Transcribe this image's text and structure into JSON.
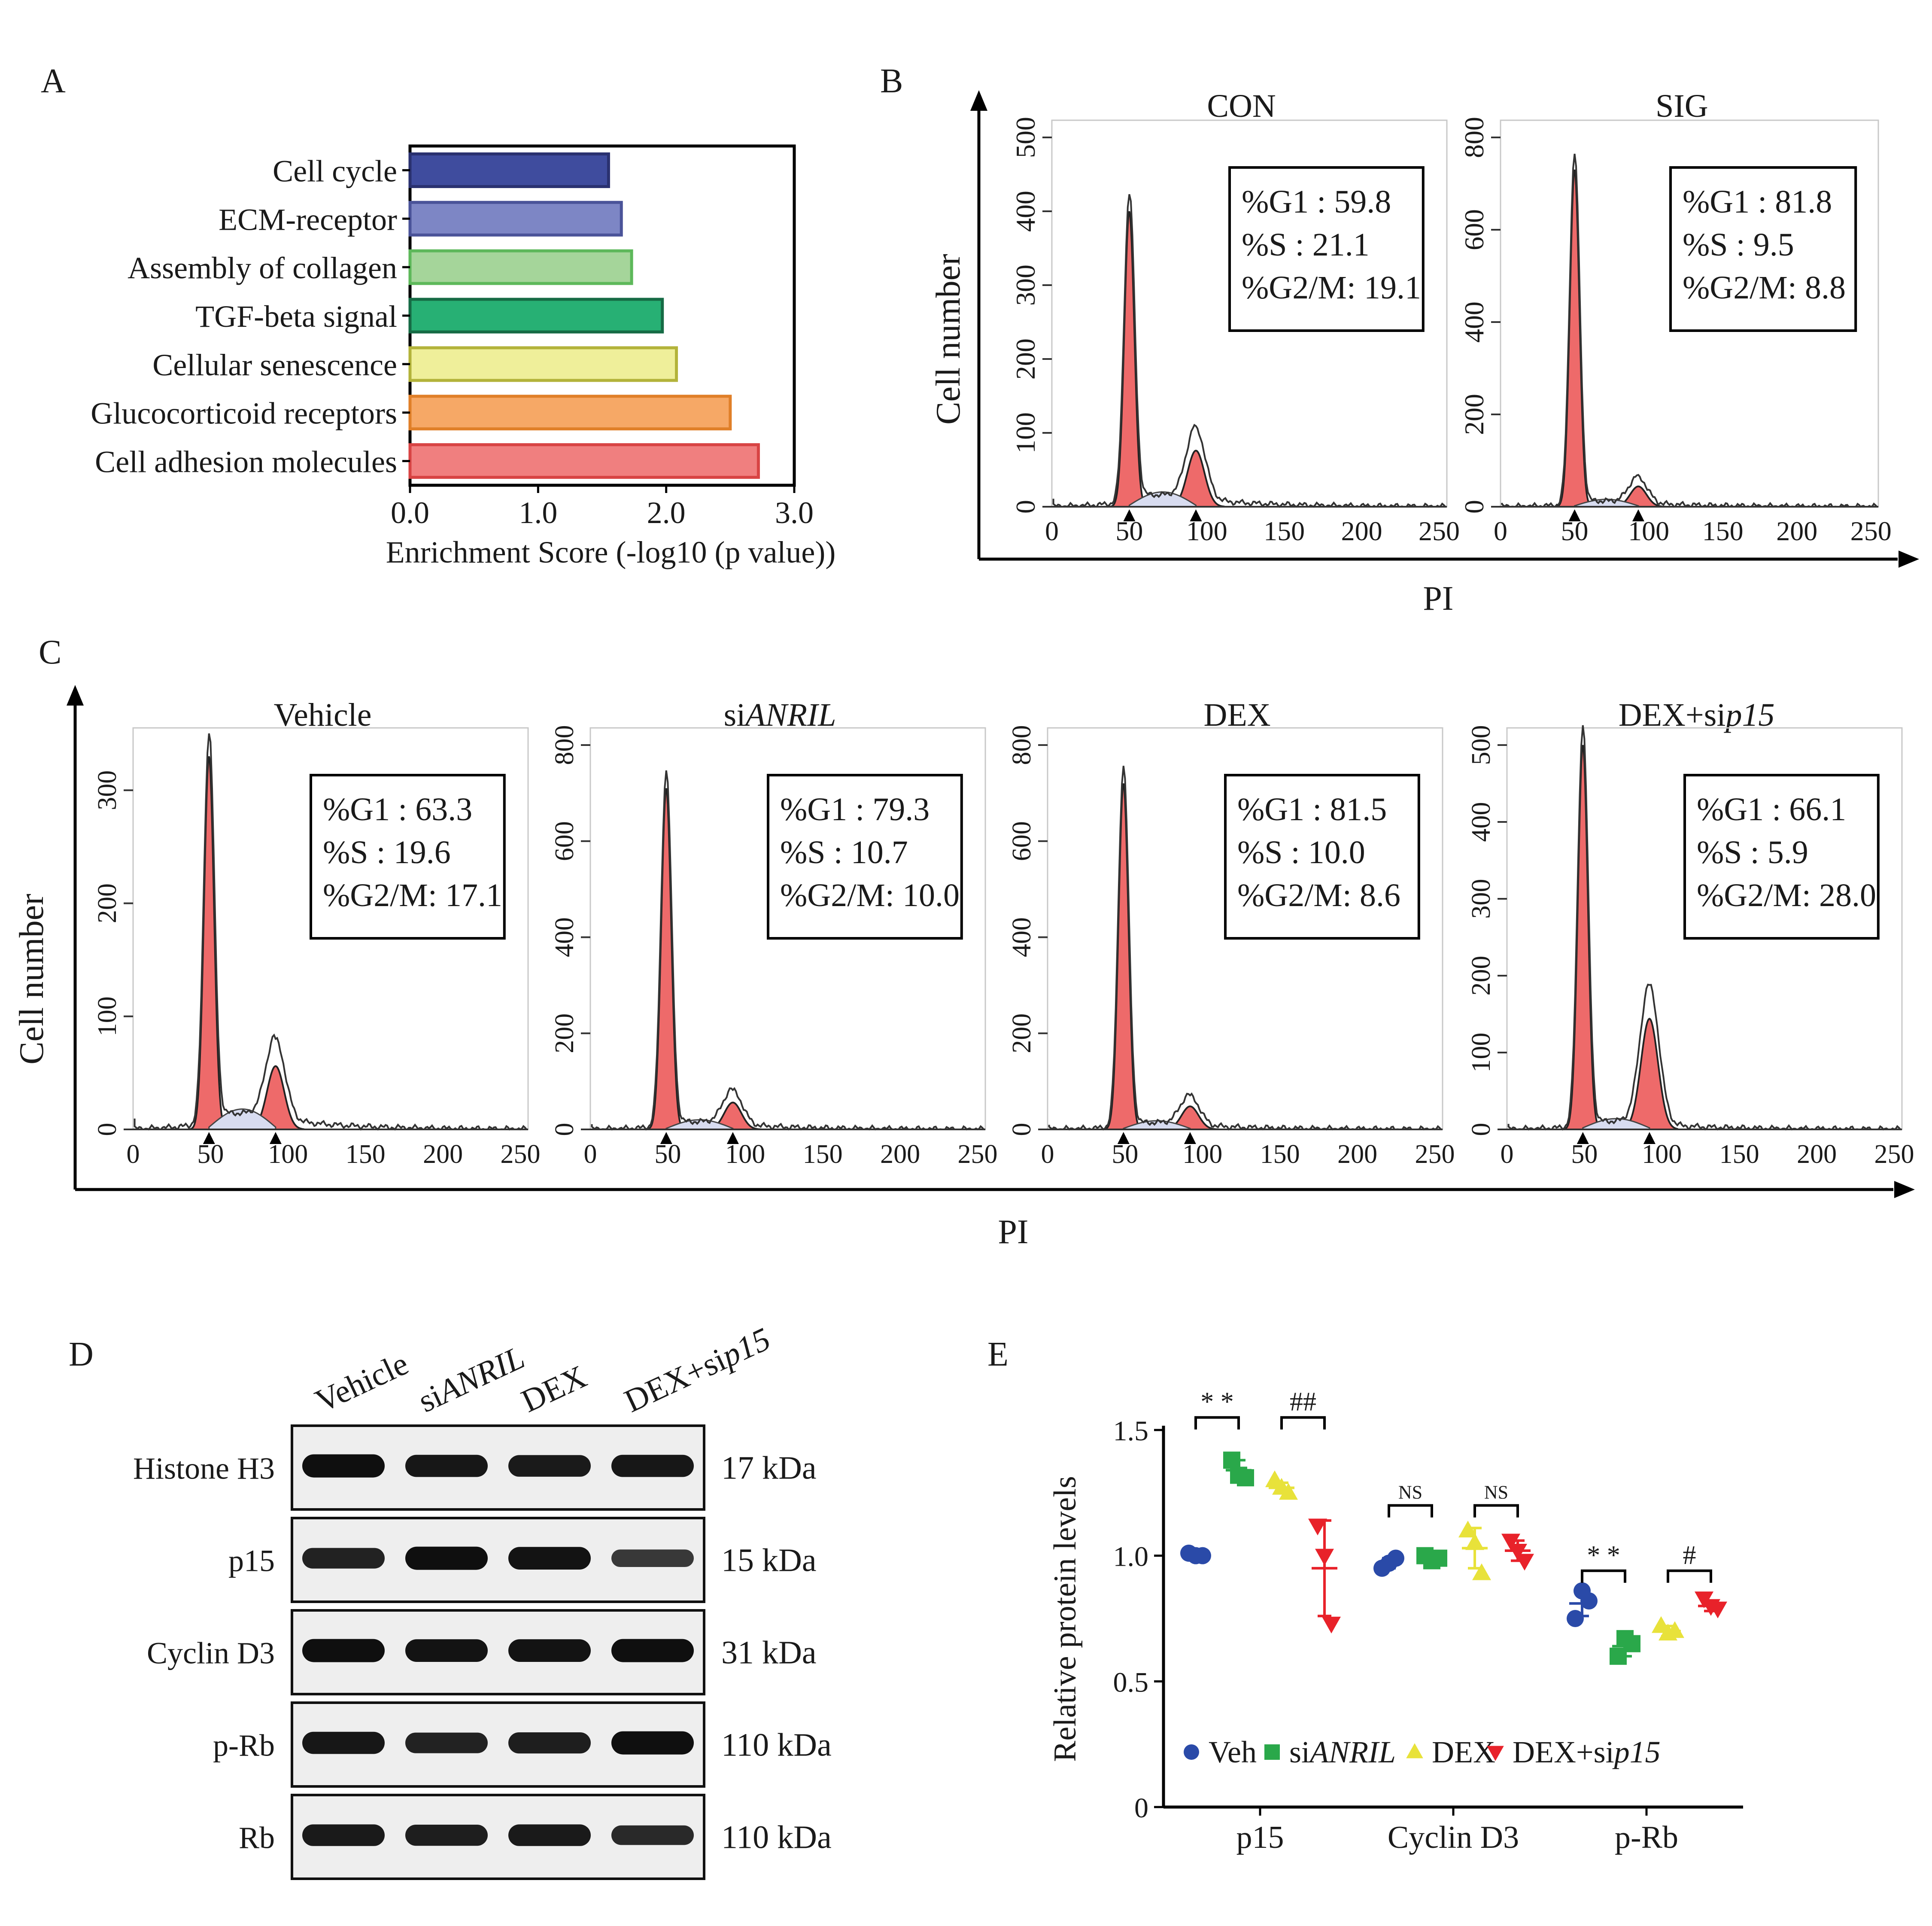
{
  "panels": {
    "A": {
      "letter": "A",
      "chart_data": {
        "type": "bar",
        "orientation": "horizontal",
        "categories": [
          "Cell cycle",
          "ECM-receptor",
          "Assembly of collagen",
          "TGF-beta signal",
          "Cellular senescence",
          "Glucocorticoid receptors",
          "Cell adhesion molecules"
        ],
        "values": [
          1.55,
          1.65,
          1.73,
          1.97,
          2.08,
          2.5,
          2.72
        ],
        "colors": [
          "#3f4c9e",
          "#7d86c5",
          "#a5d59a",
          "#27b074",
          "#efef9a",
          "#f6a866",
          "#f07f7f"
        ],
        "border_colors": [
          "#2a3170",
          "#4a5399",
          "#5db85a",
          "#166b45",
          "#b3b33a",
          "#e07f28",
          "#d84444"
        ],
        "highlight_color": "#e8232a",
        "highlight_index": 4,
        "xlabel": "Enrichment Score (-log10 (p value))",
        "xlim": [
          0,
          3
        ],
        "xticks": [
          "0.0",
          "1.0",
          "2.0",
          "3.0"
        ]
      }
    },
    "B": {
      "letter": "B",
      "ylabel": "Cell number",
      "xlabel": "PI",
      "histograms": [
        {
          "title": "CON",
          "ymax": 500,
          "yticks": [
            "0",
            "100",
            "200",
            "300",
            "400",
            "500"
          ],
          "xticks": [
            "0",
            "50",
            "100",
            "150",
            "200",
            "250"
          ],
          "g1_peak": 400,
          "g2_peak": 95,
          "g1_pos": 50,
          "g2_pos": 93,
          "s_level": 18,
          "stats": {
            "g1": "%G1     : 59.8",
            "s": "%S        : 21.1",
            "g2m": "%G2/M: 19.1"
          }
        },
        {
          "title": "SIG",
          "ymax": 800,
          "yticks": [
            "0",
            "200",
            "400",
            "600",
            "800"
          ],
          "xticks": [
            "0",
            "50",
            "100",
            "150",
            "200",
            "250"
          ],
          "g1_peak": 730,
          "g2_peak": 55,
          "g1_pos": 50,
          "g2_pos": 93,
          "s_level": 14,
          "stats": {
            "g1": "%G1     : 81.8",
            "s": "%S        : 9.5",
            "g2m": "%G2/M: 8.8"
          }
        }
      ]
    },
    "C": {
      "letter": "C",
      "ylabel": "Cell number",
      "xlabel": "PI",
      "histograms": [
        {
          "title_prefix": "Vehicle",
          "title_italic": "",
          "ymax": 340,
          "yticks": [
            "0",
            "100",
            "200",
            "300"
          ],
          "ytick_values": [
            0,
            100,
            200,
            300
          ],
          "xticks": [
            "0",
            "50",
            "100",
            "150",
            "200",
            "250"
          ],
          "g1_peak": 330,
          "g2_peak": 70,
          "g1_pos": 49,
          "g2_pos": 92,
          "s_level": 16,
          "stats": {
            "g1": "%G1      : 63.3",
            "s": "%S         : 19.6",
            "g2m": "%G2/M: 17.1"
          }
        },
        {
          "title_prefix": "si",
          "title_italic": "ANRIL",
          "ymax": 800,
          "yticks": [
            "0",
            "200",
            "400",
            "600",
            "800"
          ],
          "ytick_values": [
            0,
            200,
            400,
            600,
            800
          ],
          "xticks": [
            "0",
            "50",
            "100",
            "150",
            "200",
            "250"
          ],
          "g1_peak": 710,
          "g2_peak": 70,
          "g1_pos": 49,
          "g2_pos": 92,
          "s_level": 18,
          "stats": {
            "g1": "%G1      : 79.3",
            "s": "%S        : 10.7",
            "g2m": "%G2/M: 10.0"
          }
        },
        {
          "title_prefix": "DEX",
          "title_italic": "",
          "ymax": 800,
          "yticks": [
            "0",
            "200",
            "400",
            "600",
            "800"
          ],
          "ytick_values": [
            0,
            200,
            400,
            600,
            800
          ],
          "xticks": [
            "0",
            "50",
            "100",
            "150",
            "200",
            "250"
          ],
          "g1_peak": 720,
          "g2_peak": 60,
          "g1_pos": 49,
          "g2_pos": 92,
          "s_level": 16,
          "stats": {
            "g1": "%G1      : 81.5",
            "s": "%S        : 10.0",
            "g2m": "%G2/M: 8.6"
          }
        },
        {
          "title_prefix": "DEX+si",
          "title_italic": "p15",
          "ymax": 500,
          "yticks": [
            "0",
            "100",
            "200",
            "300",
            "400",
            "500"
          ],
          "ytick_values": [
            0,
            100,
            200,
            300,
            400,
            500
          ],
          "xticks": [
            "0",
            "50",
            "100",
            "150",
            "200",
            "250"
          ],
          "g1_peak": 500,
          "g2_peak": 180,
          "g1_pos": 49,
          "g2_pos": 92,
          "s_level": 12,
          "stats": {
            "g1": "%G1      : 66.1",
            "s": "%S         : 5.9",
            "g2m": "%G2/M: 28.0"
          }
        }
      ]
    },
    "D": {
      "letter": "D",
      "lanes": [
        {
          "prefix": "Vehicle",
          "italic": ""
        },
        {
          "prefix": "si",
          "italic": "ANRIL"
        },
        {
          "prefix": "DEX",
          "italic": ""
        },
        {
          "prefix": "DEX+si",
          "italic": "p15"
        }
      ],
      "blots": [
        {
          "label": "Histone H3",
          "kda": "17 kDa",
          "intensity": [
            1.0,
            0.9,
            0.85,
            0.9
          ]
        },
        {
          "label": "p15",
          "kda": "15 kDa",
          "intensity": [
            0.75,
            1.0,
            0.95,
            0.45
          ]
        },
        {
          "label": "Cyclin D3",
          "kda": "31 kDa",
          "intensity": [
            1.0,
            0.95,
            0.95,
            1.0
          ]
        },
        {
          "label": "p-Rb",
          "kda": "110 kDa",
          "intensity": [
            0.9,
            0.75,
            0.8,
            1.0
          ]
        },
        {
          "label": "Rb",
          "kda": "110 kDa",
          "intensity": [
            0.85,
            0.8,
            0.85,
            0.65
          ]
        }
      ]
    },
    "E": {
      "letter": "E",
      "chart_data": {
        "type": "scatter",
        "ylabel": "Relative protein levels",
        "ylim": [
          0,
          1.5
        ],
        "yticks": [
          "0",
          "0.5",
          "1.0",
          "1.5"
        ],
        "ytick_values": [
          0,
          0.5,
          1.0,
          1.5
        ],
        "categories": [
          "p15",
          "Cyclin D3",
          "p-Rb"
        ],
        "series": [
          {
            "name": "Veh",
            "prefix": "Veh",
            "italic": "",
            "marker": "circle",
            "color": "#2a4aa8",
            "points": [
              [
                1.01,
                1.0,
                1.0
              ],
              [
                0.95,
                0.97,
                0.99
              ],
              [
                0.75,
                0.86,
                0.82
              ]
            ],
            "means": [
              1.0,
              0.97,
              0.81
            ],
            "sd": [
              0.01,
              0.02,
              0.05
            ]
          },
          {
            "name": "siANRIL",
            "prefix": "si",
            "italic": "ANRIL",
            "marker": "square",
            "color": "#2aa84a",
            "points": [
              [
                1.38,
                1.32,
                1.31
              ],
              [
                1.0,
                0.98,
                0.99
              ],
              [
                0.6,
                0.67,
                0.65
              ]
            ],
            "means": [
              1.34,
              0.99,
              0.64
            ],
            "sd": [
              0.04,
              0.02,
              0.04
            ]
          },
          {
            "name": "DEX",
            "prefix": "DEX",
            "italic": "",
            "marker": "triangle-up",
            "color": "#e8e23a",
            "points": [
              [
                1.3,
                1.27,
                1.25
              ],
              [
                1.1,
                1.05,
                0.93
              ],
              [
                0.72,
                0.69,
                0.7
              ]
            ],
            "means": [
              1.27,
              1.03,
              0.7
            ],
            "sd": [
              0.02,
              0.08,
              0.02
            ]
          },
          {
            "name": "DEX+sip15",
            "prefix": "DEX+si",
            "italic": "p15",
            "marker": "triangle-down",
            "color": "#e8222a",
            "points": [
              [
                1.12,
                1.0,
                0.73
              ],
              [
                1.06,
                1.02,
                0.98
              ],
              [
                0.83,
                0.8,
                0.79
              ]
            ],
            "means": [
              0.95,
              1.02,
              0.8
            ],
            "sd": [
              0.19,
              0.04,
              0.02
            ]
          }
        ],
        "annotations": [
          {
            "text": "* *",
            "group": 0,
            "from": 0,
            "to": 1,
            "y": 1.55
          },
          {
            "text": "##",
            "group": 0,
            "from": 2,
            "to": 3,
            "y": 1.55
          },
          {
            "text": "NS",
            "group": 1,
            "from": 0,
            "to": 1,
            "y": 1.2
          },
          {
            "text": "NS",
            "group": 1,
            "from": 2,
            "to": 3,
            "y": 1.2
          },
          {
            "text": "* *",
            "group": 2,
            "from": 0,
            "to": 1,
            "y": 0.94
          },
          {
            "text": "#",
            "group": 2,
            "from": 2,
            "to": 3,
            "y": 0.94
          }
        ]
      }
    }
  }
}
